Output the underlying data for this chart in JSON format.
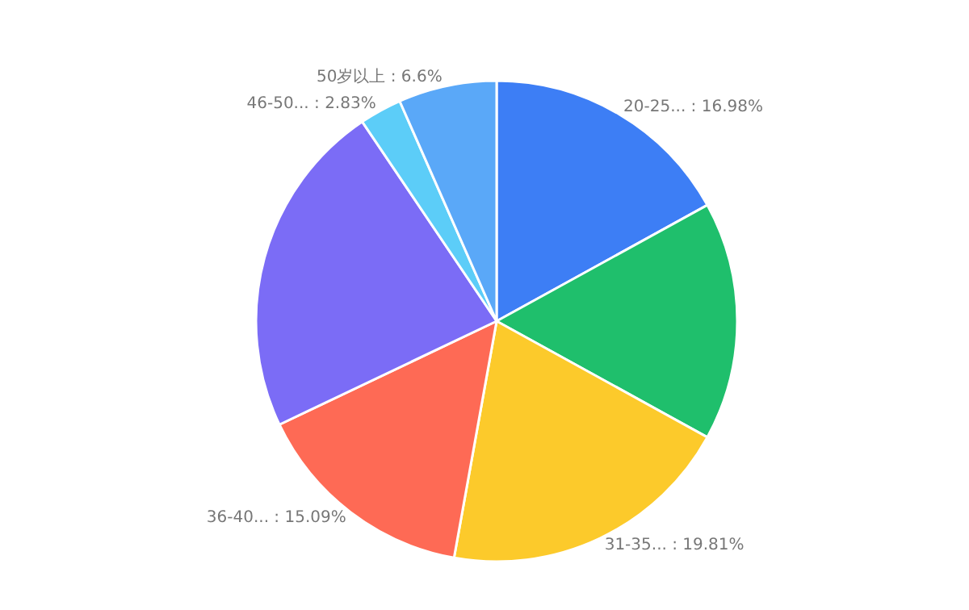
{
  "chart_data": {
    "type": "pie",
    "categories": [
      "20-25...",
      null,
      "31-35...",
      "36-40...",
      null,
      "46-50...",
      "50岁以上"
    ],
    "values": [
      16.98,
      16.04,
      19.81,
      15.09,
      22.65,
      2.83,
      6.6
    ],
    "value_labels": [
      ": 16.98%",
      null,
      ": 19.81%",
      ": 15.09%",
      null,
      ": 2.83%",
      ": 6.6%"
    ],
    "colors": [
      "#3d7ef5",
      "#1fbf6c",
      "#fcca2b",
      "#fe6a55",
      "#7b6cf6",
      "#5ccdf8",
      "#5aa8f8"
    ],
    "legend": false
  }
}
